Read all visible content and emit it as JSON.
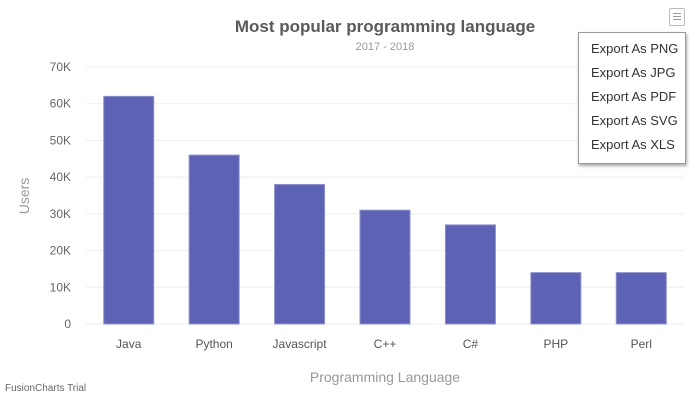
{
  "chart_data": {
    "type": "bar",
    "title": "Most popular programming language",
    "subtitle": "2017 - 2018",
    "xlabel": "Programming Language",
    "ylabel": "Users",
    "categories": [
      "Java",
      "Python",
      "Javascript",
      "C++",
      "C#",
      "PHP",
      "Perl"
    ],
    "values": [
      62000,
      46000,
      38000,
      31000,
      27000,
      14000,
      14000
    ],
    "ylim": [
      0,
      70000
    ],
    "yticks": [
      "0",
      "10K",
      "20K",
      "30K",
      "40K",
      "50K",
      "60K",
      "70K"
    ],
    "grid": true,
    "legend": "none",
    "bar_color": "#5d62b5"
  },
  "export_menu": {
    "items": [
      "Export As PNG",
      "Export As JPG",
      "Export As PDF",
      "Export As SVG",
      "Export As XLS"
    ]
  },
  "footer": {
    "trial_text": "FusionCharts Trial"
  }
}
